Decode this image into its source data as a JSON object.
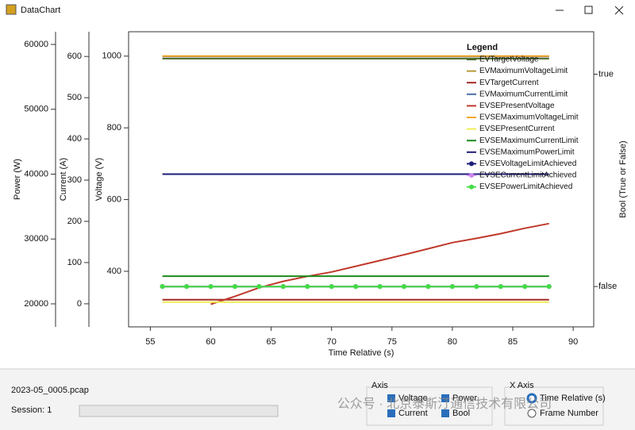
{
  "window": {
    "title": "DataChart",
    "file": "2023-05_0005.pcap",
    "session": "Session: 1",
    "axis_group": {
      "title": "Axis",
      "options": [
        "Voltage",
        "Power",
        "Current",
        "Bool"
      ]
    },
    "x_axis_group": {
      "title": "X Axis",
      "options": [
        "Time Relative (s)",
        "Frame Number"
      ]
    },
    "watermark": "公众号 · 北京泰斯汀通信技术有限公司"
  },
  "chart_data": {
    "type": "line",
    "legend_title": "Legend",
    "x_label": "Time Relative (s)",
    "xlim": [
      53.2,
      91.7
    ],
    "xticks": [
      55,
      60,
      65,
      70,
      75,
      80,
      85,
      90
    ],
    "y_label": "Voltage (V)",
    "ylim": [
      245,
      1068
    ],
    "yticks": [
      400,
      600,
      800,
      1000
    ],
    "y2_label": "Current (A)",
    "y2lim": [
      -56,
      660
    ],
    "y2ticks": [
      0,
      100,
      200,
      300,
      400,
      500,
      600
    ],
    "y3_label": "Power  (W)",
    "y3lim": [
      16450,
      61960
    ],
    "y3ticks": [
      20000,
      30000,
      40000,
      50000,
      60000
    ],
    "y4_label": "Bool (True or False)",
    "y4lim": [
      -0.19,
      1.2
    ],
    "y4ticks": [
      {
        "value": 0,
        "label": "false"
      },
      {
        "value": 1,
        "label": "true"
      }
    ],
    "x": [
      56,
      58,
      60,
      62,
      64,
      66,
      68,
      70,
      72,
      74,
      76,
      78,
      80,
      82,
      84,
      86,
      88
    ],
    "series": [
      {
        "name": "EVTargetVoltage",
        "color": "#4d6b2a",
        "axis": "y",
        "values": [
          993,
          993,
          993,
          993,
          993,
          993,
          993,
          993,
          993,
          993,
          993,
          993,
          993,
          993,
          993,
          993,
          993
        ]
      },
      {
        "name": "EVMaximumVoltageLimit",
        "color": "#b59a3c",
        "axis": "y",
        "values": [
          1000,
          1000,
          1000,
          1000,
          1000,
          1000,
          1000,
          1000,
          1000,
          1000,
          1000,
          1000,
          1000,
          1000,
          1000,
          1000,
          1000
        ]
      },
      {
        "name": "EVTargetCurrent",
        "color": "#a52a2a",
        "axis": "y2",
        "values": [
          10,
          10,
          10,
          10,
          10,
          10,
          10,
          10,
          10,
          10,
          10,
          10,
          10,
          10,
          10,
          10,
          10
        ]
      },
      {
        "name": "EVMaximumCurrentLimit",
        "color": "#4a6fa5",
        "axis": "y2",
        "values": [
          600,
          600,
          600,
          600,
          600,
          600,
          600,
          600,
          600,
          600,
          600,
          600,
          600,
          600,
          600,
          600,
          600
        ]
      },
      {
        "name": "EVSEPresentVoltage",
        "color": "#c0392b",
        "axis": "y",
        "values": [
          null,
          null,
          308,
          330,
          354,
          372,
          386,
          398,
          414,
          430,
          446,
          463,
          480,
          492,
          505,
          520,
          533
        ]
      },
      {
        "name": "EVSEMaximumVoltageLimit",
        "color": "#f5a623",
        "axis": "y",
        "values": [
          1000,
          1000,
          1000,
          1000,
          1000,
          1000,
          1000,
          1000,
          1000,
          1000,
          1000,
          1000,
          1000,
          1000,
          1000,
          1000,
          1000
        ]
      },
      {
        "name": "EVSEPresentCurrent",
        "color": "#eeee55",
        "axis": "y2",
        "values": [
          4,
          4,
          4,
          4,
          4,
          4,
          4,
          4,
          4,
          4,
          4,
          4,
          4,
          4,
          4,
          4,
          4
        ]
      },
      {
        "name": "EVSEMaximumCurrentLimit",
        "color": "#1e8a1e",
        "axis": "y2",
        "values": [
          67,
          67,
          67,
          67,
          67,
          67,
          67,
          67,
          67,
          67,
          67,
          67,
          67,
          67,
          67,
          67,
          67
        ]
      },
      {
        "name": "EVSEMaximumPowerLimit",
        "color": "#1e1e7a",
        "axis": "y3",
        "values": [
          40000,
          40000,
          40000,
          40000,
          40000,
          40000,
          40000,
          40000,
          40000,
          40000,
          40000,
          40000,
          40000,
          40000,
          40000,
          40000,
          40000
        ]
      },
      {
        "name": "EVSEVoltageLimitAchieved",
        "color": "#1e1e7a",
        "axis": "y4",
        "marker": "circle",
        "values": [
          0,
          0,
          0,
          0,
          0,
          0,
          0,
          0,
          0,
          0,
          0,
          0,
          0,
          0,
          0,
          0,
          0
        ]
      },
      {
        "name": "EVSECurrentLimitAchieved",
        "color": "#cc88ee",
        "axis": "y4",
        "marker": "circle",
        "values": [
          0,
          0,
          0,
          0,
          0,
          0,
          0,
          0,
          0,
          0,
          0,
          0,
          0,
          0,
          0,
          0,
          0
        ]
      },
      {
        "name": "EVSEPowerLimitAchieved",
        "color": "#44dd44",
        "axis": "y4",
        "marker": "circle",
        "values": [
          0,
          0,
          0,
          0,
          0,
          0,
          0,
          0,
          0,
          0,
          0,
          0,
          0,
          0,
          0,
          0,
          0
        ]
      }
    ]
  }
}
